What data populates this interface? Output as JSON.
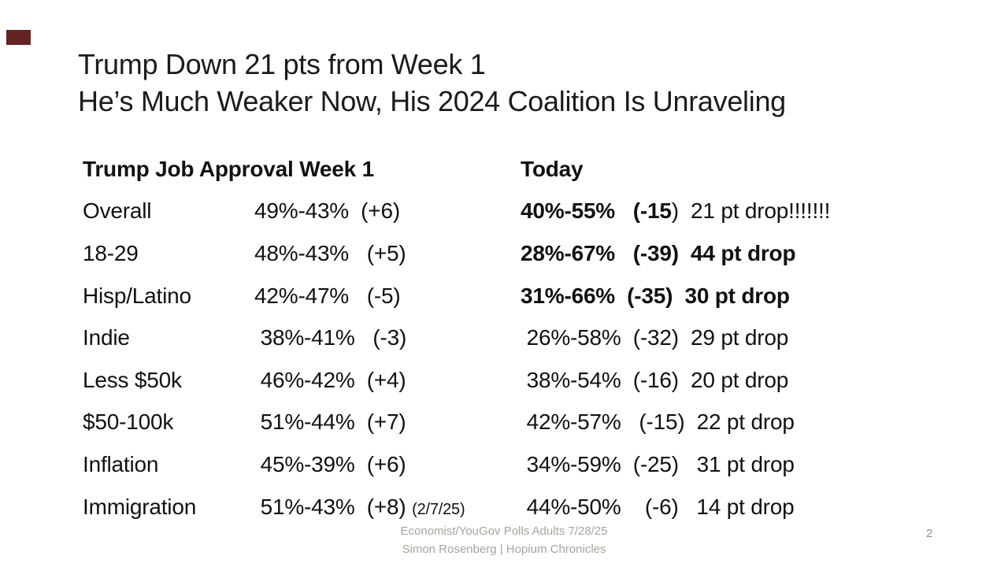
{
  "slide": {
    "title_line1": "Trump Down 21 pts from Week 1",
    "title_line2": "He’s Much Weaker Now, His 2024 Coalition Is Unraveling",
    "page_number": "2"
  },
  "colors": {
    "accent_mark": "#632423",
    "body_text": "#111111",
    "footer_text": "#A8A49D",
    "page_number_text": "#8C8C8C"
  },
  "table": {
    "header": {
      "week1_label": "Trump Job Approval Week 1",
      "today_label": "Today"
    },
    "rows": [
      {
        "label": "Overall",
        "week1": "49%-43%  (+6)",
        "week1_note": "",
        "today_bold": "40%-55%   (-15",
        "today_rest": ")  21 pt drop!!!!!!!"
      },
      {
        "label": "18-29",
        "week1": "48%-43%   (+5)",
        "week1_note": "",
        "today_bold": "28%-67%   (-39)  44 pt drop",
        "today_rest": ""
      },
      {
        "label": "Hisp/Latino",
        "week1": "42%-47%   (-5)",
        "week1_note": "",
        "today_bold": "31%-66%  (-35)  30 pt drop",
        "today_rest": ""
      },
      {
        "label": "Indie",
        "week1": " 38%-41%   (-3)",
        "week1_note": "",
        "today_bold": "",
        "today_rest": " 26%-58%  (-32)  29 pt drop"
      },
      {
        "label": "Less $50k",
        "week1": " 46%-42%  (+4)",
        "week1_note": "",
        "today_bold": "",
        "today_rest": " 38%-54%  (-16)  20 pt drop"
      },
      {
        "label": "$50-100k",
        "week1": " 51%-44%  (+7)",
        "week1_note": "",
        "today_bold": "",
        "today_rest": " 42%-57%   (-15)  22 pt drop"
      },
      {
        "label": "Inflation",
        "week1": " 45%-39%  (+6)",
        "week1_note": "",
        "today_bold": "",
        "today_rest": " 34%-59%  (-25)   31 pt drop"
      },
      {
        "label": "Immigration",
        "week1": " 51%-43%  (+8) ",
        "week1_note": "(2/7/25)",
        "today_bold": "",
        "today_rest": " 44%-50%    (-6)   14 pt drop"
      }
    ]
  },
  "footer": {
    "line1": "Economist/YouGov Polls Adults 7/28/25",
    "line2": "Simon Rosenberg | Hopium Chronicles"
  }
}
